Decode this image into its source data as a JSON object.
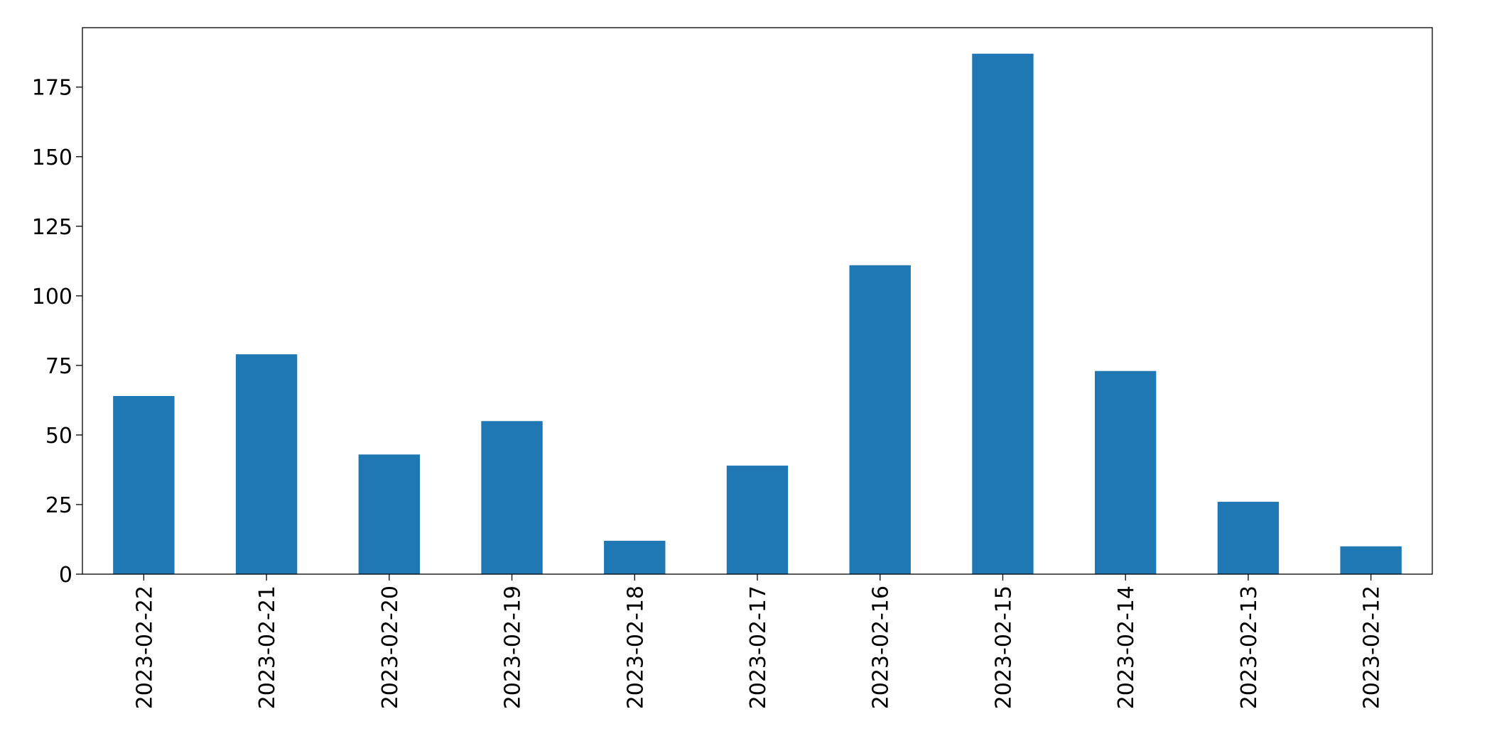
{
  "chart_data": {
    "type": "bar",
    "categories": [
      "2023-02-22",
      "2023-02-21",
      "2023-02-20",
      "2023-02-19",
      "2023-02-18",
      "2023-02-17",
      "2023-02-16",
      "2023-02-15",
      "2023-02-14",
      "2023-02-13",
      "2023-02-12"
    ],
    "values": [
      64,
      79,
      43,
      55,
      12,
      39,
      111,
      187,
      73,
      26,
      10
    ],
    "color": "#1f77b4",
    "ylim": [
      0,
      196.35
    ],
    "yticks": [
      0,
      25,
      50,
      75,
      100,
      125,
      150,
      175
    ],
    "grid": false
  }
}
